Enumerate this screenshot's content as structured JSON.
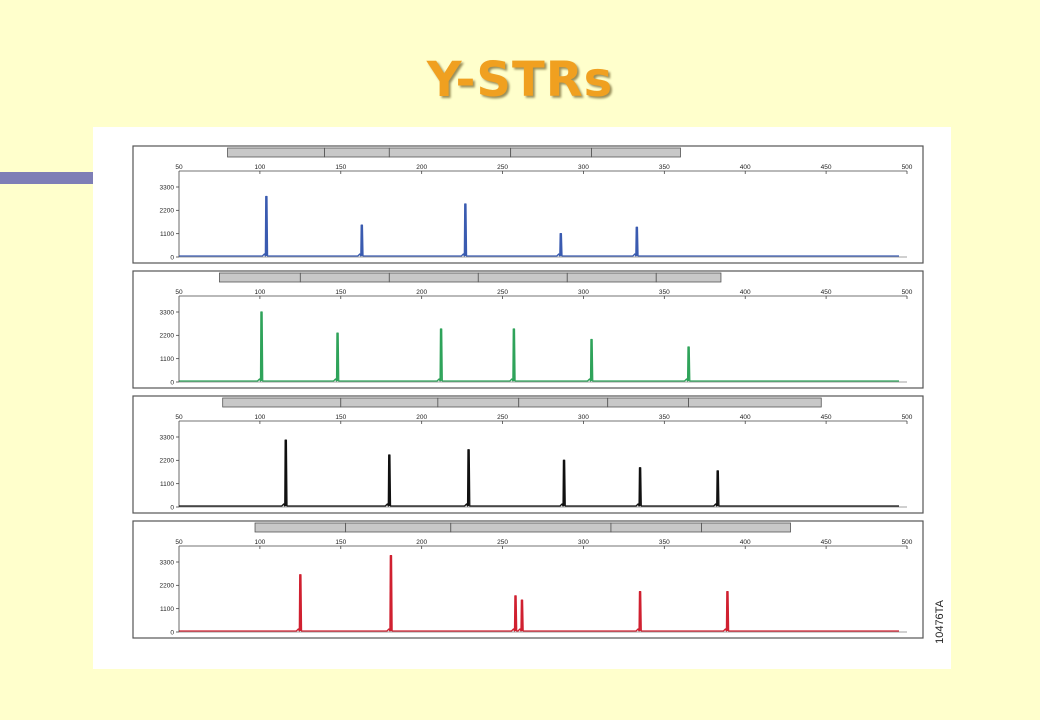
{
  "slide": {
    "title": "Y-STRs",
    "figure_code": "10476TA"
  },
  "colors": {
    "background": "#ffffcc",
    "title": "#f0a020",
    "accent_bar": "#7e7eb6",
    "locus_bar": "#c8c8c8"
  },
  "chart_data": [
    {
      "type": "line",
      "name": "blue",
      "color": "#3a5bb0",
      "xlim": [
        50,
        500
      ],
      "ylim": [
        0,
        3300
      ],
      "x_ticks": [
        50,
        100,
        150,
        200,
        250,
        300,
        350,
        400,
        450,
        500
      ],
      "y_ticks": [
        0,
        1100,
        2200,
        3300
      ],
      "locus_bar_breaks": [
        80,
        140,
        180,
        255,
        305,
        360
      ],
      "peaks": [
        {
          "x": 104,
          "y": 2850
        },
        {
          "x": 163,
          "y": 1500
        },
        {
          "x": 227,
          "y": 2500
        },
        {
          "x": 286,
          "y": 1100
        },
        {
          "x": 333,
          "y": 1400
        }
      ]
    },
    {
      "type": "line",
      "name": "green",
      "color": "#2fa35a",
      "xlim": [
        50,
        500
      ],
      "ylim": [
        0,
        3300
      ],
      "x_ticks": [
        50,
        100,
        150,
        200,
        250,
        300,
        350,
        400,
        450,
        500
      ],
      "y_ticks": [
        0,
        1100,
        2200,
        3300
      ],
      "locus_bar_breaks": [
        75,
        125,
        180,
        235,
        290,
        345,
        385
      ],
      "peaks": [
        {
          "x": 101,
          "y": 3300
        },
        {
          "x": 148,
          "y": 2300
        },
        {
          "x": 212,
          "y": 2500
        },
        {
          "x": 257,
          "y": 2500
        },
        {
          "x": 305,
          "y": 2000
        },
        {
          "x": 365,
          "y": 1650
        }
      ]
    },
    {
      "type": "line",
      "name": "black",
      "color": "#111111",
      "xlim": [
        50,
        500
      ],
      "ylim": [
        0,
        3300
      ],
      "x_ticks": [
        50,
        100,
        150,
        200,
        250,
        300,
        350,
        400,
        450,
        500
      ],
      "y_ticks": [
        0,
        1100,
        2200,
        3300
      ],
      "locus_bar_breaks": [
        77,
        150,
        210,
        260,
        315,
        365,
        447
      ],
      "peaks": [
        {
          "x": 116,
          "y": 3150
        },
        {
          "x": 180,
          "y": 2450
        },
        {
          "x": 229,
          "y": 2700
        },
        {
          "x": 288,
          "y": 2200
        },
        {
          "x": 335,
          "y": 1850
        },
        {
          "x": 383,
          "y": 1700
        }
      ]
    },
    {
      "type": "line",
      "name": "red",
      "color": "#d02030",
      "xlim": [
        50,
        500
      ],
      "ylim": [
        0,
        3300
      ],
      "x_ticks": [
        50,
        100,
        150,
        200,
        250,
        300,
        350,
        400,
        450,
        500
      ],
      "y_ticks": [
        0,
        1100,
        2200,
        3300
      ],
      "locus_bar_breaks": [
        97,
        153,
        218,
        317,
        373,
        428
      ],
      "peaks": [
        {
          "x": 125,
          "y": 2700
        },
        {
          "x": 181,
          "y": 3600
        },
        {
          "x": 258,
          "y": 1700
        },
        {
          "x": 262,
          "y": 1500
        },
        {
          "x": 335,
          "y": 1900
        },
        {
          "x": 389,
          "y": 1900
        }
      ]
    }
  ]
}
